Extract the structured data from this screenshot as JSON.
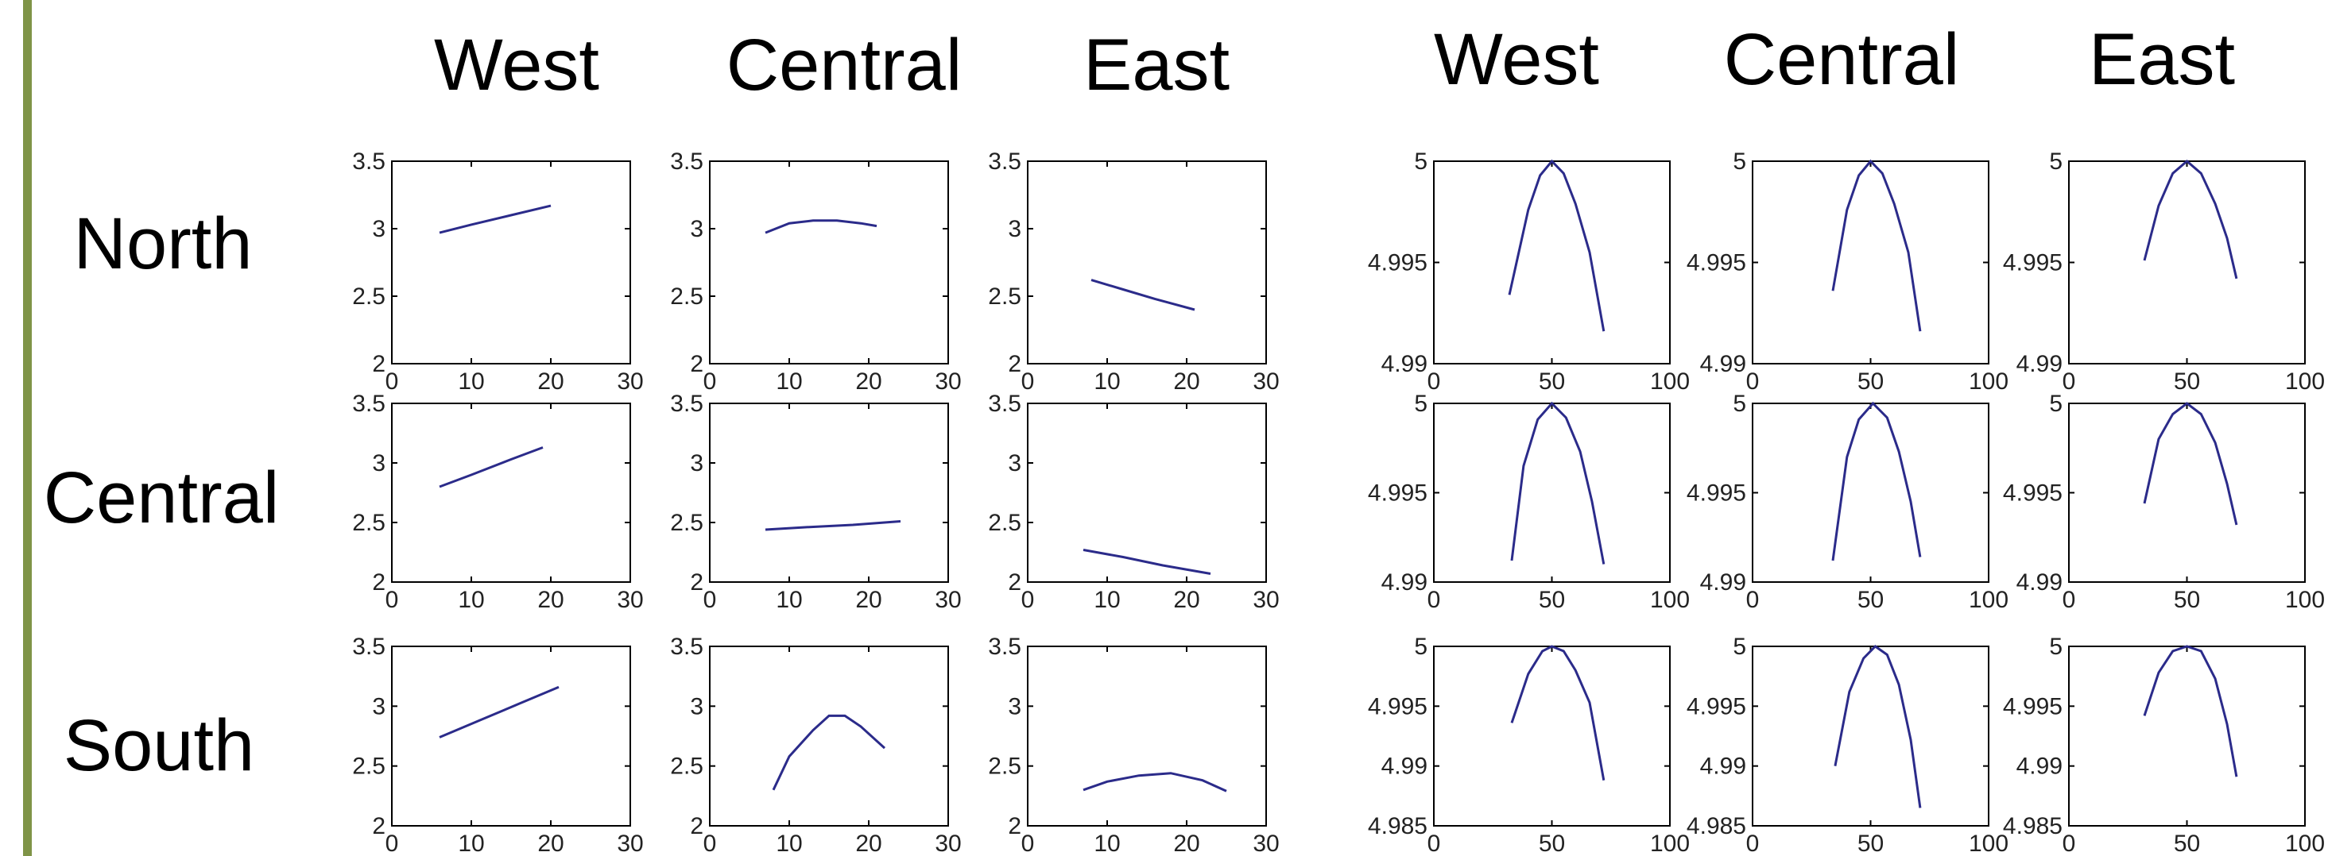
{
  "colors": {
    "accent_bar": "#7f9447",
    "line": "#2b2b8a"
  },
  "column_headers": [
    "West",
    "Central",
    "East",
    "West",
    "Central",
    "East"
  ],
  "row_headers": [
    "North",
    "Central",
    "South"
  ],
  "chart_data": [
    {
      "type": "line",
      "region_row": "North",
      "region_col": "West",
      "xlim": [
        0,
        30
      ],
      "ylim": [
        2,
        3.5
      ],
      "xticks": [
        0,
        10,
        20,
        30
      ],
      "yticks": [
        2,
        2.5,
        3,
        3.5
      ],
      "x": [
        6,
        10,
        15,
        20
      ],
      "y": [
        2.97,
        3.03,
        3.1,
        3.17
      ]
    },
    {
      "type": "line",
      "region_row": "North",
      "region_col": "Central",
      "xlim": [
        0,
        30
      ],
      "ylim": [
        2,
        3.5
      ],
      "xticks": [
        0,
        10,
        20,
        30
      ],
      "yticks": [
        2,
        2.5,
        3,
        3.5
      ],
      "x": [
        7,
        10,
        13,
        16,
        19,
        21
      ],
      "y": [
        2.97,
        3.04,
        3.06,
        3.06,
        3.04,
        3.02
      ]
    },
    {
      "type": "line",
      "region_row": "North",
      "region_col": "East",
      "xlim": [
        0,
        30
      ],
      "ylim": [
        2,
        3.5
      ],
      "xticks": [
        0,
        10,
        20,
        30
      ],
      "yticks": [
        2,
        2.5,
        3,
        3.5
      ],
      "x": [
        8,
        12,
        16,
        21
      ],
      "y": [
        2.62,
        2.55,
        2.48,
        2.4
      ]
    },
    {
      "type": "line",
      "region_row": "Central",
      "region_col": "West",
      "xlim": [
        0,
        30
      ],
      "ylim": [
        2,
        3.5
      ],
      "xticks": [
        0,
        10,
        20,
        30
      ],
      "yticks": [
        2,
        2.5,
        3,
        3.5
      ],
      "x": [
        6,
        10,
        15,
        19
      ],
      "y": [
        2.8,
        2.9,
        3.03,
        3.13
      ]
    },
    {
      "type": "line",
      "region_row": "Central",
      "region_col": "Central",
      "xlim": [
        0,
        30
      ],
      "ylim": [
        2,
        3.5
      ],
      "xticks": [
        0,
        10,
        20,
        30
      ],
      "yticks": [
        2,
        2.5,
        3,
        3.5
      ],
      "x": [
        7,
        12,
        18,
        24
      ],
      "y": [
        2.44,
        2.46,
        2.48,
        2.51
      ]
    },
    {
      "type": "line",
      "region_row": "Central",
      "region_col": "East",
      "xlim": [
        0,
        30
      ],
      "ylim": [
        2,
        3.5
      ],
      "xticks": [
        0,
        10,
        20,
        30
      ],
      "yticks": [
        2,
        2.5,
        3,
        3.5
      ],
      "x": [
        7,
        12,
        17,
        23
      ],
      "y": [
        2.27,
        2.21,
        2.14,
        2.07
      ]
    },
    {
      "type": "line",
      "region_row": "South",
      "region_col": "West",
      "xlim": [
        0,
        30
      ],
      "ylim": [
        2,
        3.5
      ],
      "xticks": [
        0,
        10,
        20,
        30
      ],
      "yticks": [
        2,
        2.5,
        3,
        3.5
      ],
      "x": [
        6,
        11,
        16,
        21
      ],
      "y": [
        2.74,
        2.88,
        3.02,
        3.16
      ]
    },
    {
      "type": "line",
      "region_row": "South",
      "region_col": "Central",
      "xlim": [
        0,
        30
      ],
      "ylim": [
        2,
        3.5
      ],
      "xticks": [
        0,
        10,
        20,
        30
      ],
      "yticks": [
        2,
        2.5,
        3,
        3.5
      ],
      "x": [
        8,
        10,
        13,
        15,
        17,
        19,
        22
      ],
      "y": [
        2.3,
        2.58,
        2.8,
        2.92,
        2.92,
        2.83,
        2.65
      ]
    },
    {
      "type": "line",
      "region_row": "South",
      "region_col": "East",
      "xlim": [
        0,
        30
      ],
      "ylim": [
        2,
        3.5
      ],
      "xticks": [
        0,
        10,
        20,
        30
      ],
      "yticks": [
        2,
        2.5,
        3,
        3.5
      ],
      "x": [
        7,
        10,
        14,
        18,
        22,
        25
      ],
      "y": [
        2.3,
        2.37,
        2.42,
        2.44,
        2.38,
        2.29
      ]
    },
    {
      "type": "line",
      "region_row": "North",
      "region_col": "West",
      "xlim": [
        0,
        100
      ],
      "ylim": [
        4.99,
        5
      ],
      "xticks": [
        0,
        50,
        100
      ],
      "yticks": [
        4.99,
        4.995,
        5
      ],
      "x": [
        32,
        40,
        45,
        50,
        55,
        60,
        66,
        72
      ],
      "y": [
        4.9934,
        4.9976,
        4.9993,
        5.0,
        4.9994,
        4.9979,
        4.9955,
        4.9916
      ]
    },
    {
      "type": "line",
      "region_row": "North",
      "region_col": "Central",
      "xlim": [
        0,
        100
      ],
      "ylim": [
        4.99,
        5
      ],
      "xticks": [
        0,
        50,
        100
      ],
      "yticks": [
        4.99,
        4.995,
        5
      ],
      "x": [
        34,
        40,
        45,
        50,
        55,
        60,
        66,
        71
      ],
      "y": [
        4.9936,
        4.9976,
        4.9993,
        5.0,
        4.9994,
        4.9979,
        4.9955,
        4.9916
      ]
    },
    {
      "type": "line",
      "region_row": "North",
      "region_col": "East",
      "xlim": [
        0,
        100
      ],
      "ylim": [
        4.99,
        5
      ],
      "xticks": [
        0,
        50,
        100
      ],
      "yticks": [
        4.99,
        4.995,
        5
      ],
      "x": [
        32,
        38,
        44,
        50,
        56,
        62,
        67,
        71
      ],
      "y": [
        4.9951,
        4.9978,
        4.9994,
        5.0,
        4.9994,
        4.9979,
        4.9962,
        4.9942
      ]
    },
    {
      "type": "line",
      "region_row": "Central",
      "region_col": "West",
      "xlim": [
        0,
        100
      ],
      "ylim": [
        4.99,
        5
      ],
      "xticks": [
        0,
        50,
        100
      ],
      "yticks": [
        4.99,
        4.995,
        5
      ],
      "x": [
        33,
        38,
        44,
        50,
        56,
        62,
        67,
        72
      ],
      "y": [
        4.9912,
        4.9965,
        4.9991,
        5.0,
        4.9992,
        4.9973,
        4.9945,
        4.991
      ]
    },
    {
      "type": "line",
      "region_row": "Central",
      "region_col": "Central",
      "xlim": [
        0,
        100
      ],
      "ylim": [
        4.99,
        5
      ],
      "xticks": [
        0,
        50,
        100
      ],
      "yticks": [
        4.99,
        4.995,
        5
      ],
      "x": [
        34,
        40,
        45,
        51,
        57,
        62,
        67,
        71
      ],
      "y": [
        4.9912,
        4.997,
        4.9991,
        5.0,
        4.9992,
        4.9973,
        4.9945,
        4.9914
      ]
    },
    {
      "type": "line",
      "region_row": "Central",
      "region_col": "East",
      "xlim": [
        0,
        100
      ],
      "ylim": [
        4.99,
        5
      ],
      "xticks": [
        0,
        50,
        100
      ],
      "yticks": [
        4.99,
        4.995,
        5
      ],
      "x": [
        32,
        38,
        44,
        50,
        56,
        62,
        67,
        71
      ],
      "y": [
        4.9944,
        4.998,
        4.9994,
        5.0,
        4.9994,
        4.9978,
        4.9955,
        4.9932
      ]
    },
    {
      "type": "line",
      "region_row": "South",
      "region_col": "West",
      "xlim": [
        0,
        100
      ],
      "ylim": [
        4.985,
        5
      ],
      "xticks": [
        0,
        50,
        100
      ],
      "yticks": [
        4.985,
        4.99,
        4.995,
        5
      ],
      "x": [
        33,
        40,
        46,
        50,
        55,
        60,
        66,
        72
      ],
      "y": [
        4.9936,
        4.9977,
        4.9996,
        5.0,
        4.9996,
        4.998,
        4.9953,
        4.9888
      ]
    },
    {
      "type": "line",
      "region_row": "South",
      "region_col": "Central",
      "xlim": [
        0,
        100
      ],
      "ylim": [
        4.985,
        5
      ],
      "xticks": [
        0,
        50,
        100
      ],
      "yticks": [
        4.985,
        4.99,
        4.995,
        5
      ],
      "x": [
        35,
        41,
        47,
        52,
        57,
        62,
        67,
        71
      ],
      "y": [
        4.99,
        4.9962,
        4.999,
        5.0,
        4.9993,
        4.9968,
        4.9922,
        4.9865
      ]
    },
    {
      "type": "line",
      "region_row": "South",
      "region_col": "East",
      "xlim": [
        0,
        100
      ],
      "ylim": [
        4.985,
        5
      ],
      "xticks": [
        0,
        50,
        100
      ],
      "yticks": [
        4.985,
        4.99,
        4.995,
        5
      ],
      "x": [
        32,
        38,
        44,
        50,
        56,
        62,
        67,
        71
      ],
      "y": [
        4.9942,
        4.9978,
        4.9996,
        5.0,
        4.9996,
        4.9973,
        4.9935,
        4.9891
      ]
    }
  ]
}
